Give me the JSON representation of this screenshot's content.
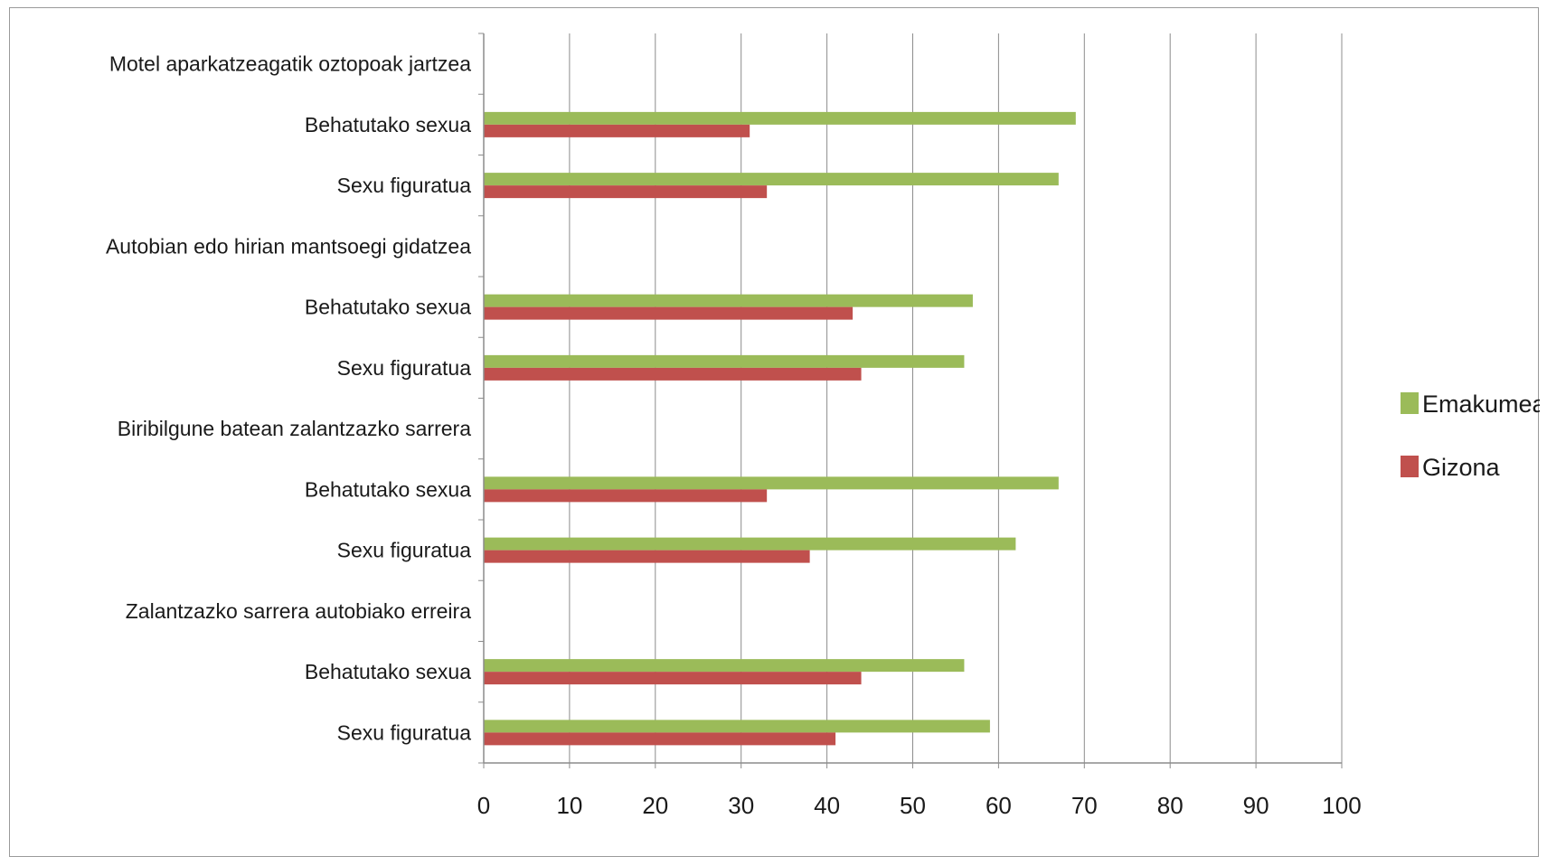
{
  "chart_data": {
    "type": "bar",
    "orientation": "horizontal",
    "categories": [
      "Motel aparkatzeagatik oztopoak jartzea",
      "Behatutako sexua",
      "Sexu figuratua",
      "Autobian edo hirian mantsoegi gidatzea",
      "Behatutako sexua",
      "Sexu figuratua",
      "Biribilgune batean zalantzazko sarrera",
      "Behatutako sexua",
      "Sexu figuratua",
      "Zalantzazko sarrera autobiako erreira",
      "Behatutako sexua",
      "Sexu figuratua"
    ],
    "series": [
      {
        "name": "Emakumea",
        "color": "#9bbb59",
        "values": [
          null,
          69,
          67,
          null,
          57,
          56,
          null,
          67,
          62,
          null,
          56,
          59
        ]
      },
      {
        "name": "Gizona",
        "color": "#c0504d",
        "values": [
          null,
          31,
          33,
          null,
          43,
          44,
          null,
          33,
          38,
          null,
          44,
          41
        ]
      }
    ],
    "xlim": [
      0,
      100
    ],
    "xticks": [
      "0",
      "10",
      "20",
      "30",
      "40",
      "50",
      "60",
      "70",
      "80",
      "90",
      "100"
    ],
    "grid": true,
    "legend_position": "right",
    "title": "",
    "xlabel": "",
    "ylabel": ""
  }
}
